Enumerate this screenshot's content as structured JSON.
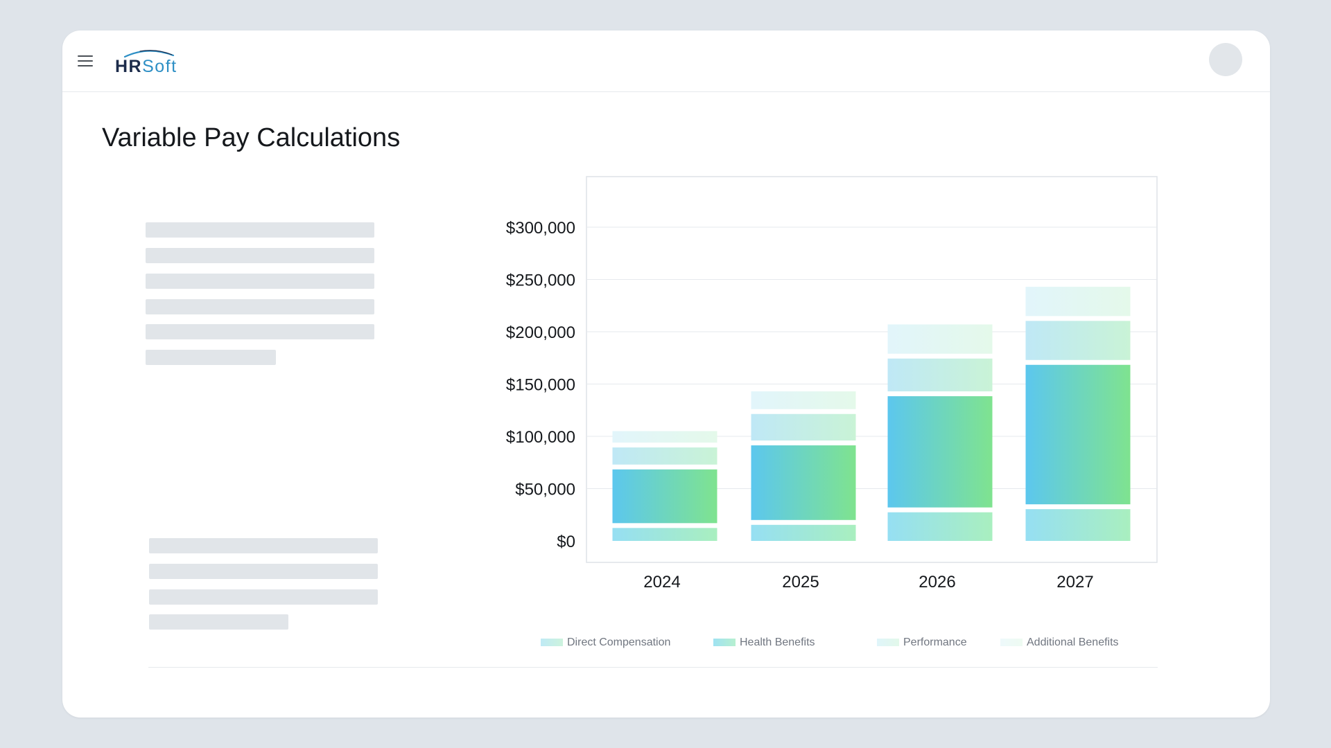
{
  "app": {
    "logo_hr": "HR",
    "logo_soft": "Soft"
  },
  "header": {
    "menu_icon": "hamburger-menu-icon",
    "avatar_icon": "user-avatar"
  },
  "page": {
    "title": "Variable Pay Calculations"
  },
  "colors": {
    "background": "#dfe4ea",
    "logo_dark": "#1c2b4a",
    "logo_accent": "#2d8fc5",
    "blue": "#5cc7ee",
    "green": "#7fe38f"
  },
  "chart_data": {
    "type": "bar",
    "stacked": true,
    "categories": [
      "2024",
      "2025",
      "2026",
      "2027"
    ],
    "ylim": [
      0,
      300000
    ],
    "y_ticks": [
      "$0",
      "$50,000",
      "$100,000",
      "$150,000",
      "$200,000",
      "$250,000",
      "$300,000"
    ],
    "y_tick_values": [
      0,
      50000,
      100000,
      150000,
      200000,
      250000,
      300000
    ],
    "grid": true,
    "legend_position": "bottom",
    "series": [
      {
        "name": "Direct Compensation",
        "values": [
          17000,
          20000,
          32000,
          35000
        ]
      },
      {
        "name": "Health Benefits",
        "values": [
          56000,
          76000,
          111000,
          138000
        ]
      },
      {
        "name": "Performance",
        "values": [
          21000,
          30000,
          36000,
          42000
        ]
      },
      {
        "name": "Additional Benefits",
        "values": [
          11000,
          17000,
          28000,
          28000
        ]
      }
    ]
  }
}
